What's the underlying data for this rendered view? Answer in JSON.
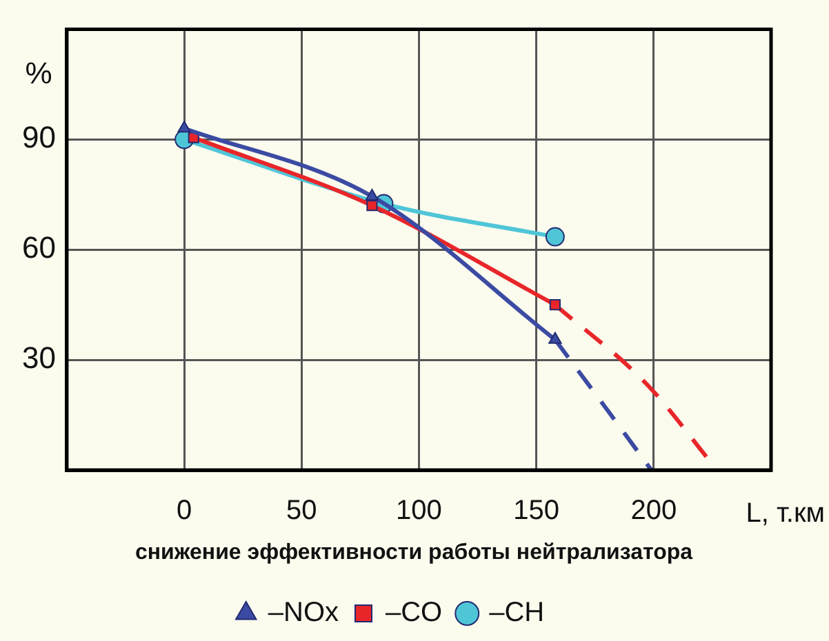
{
  "chart_data": {
    "type": "line",
    "ylabel": "%",
    "xlabel": "L, т.км",
    "annotations": [
      "снижение эффективности работы нейтрализатора"
    ],
    "xlim": [
      -50,
      250
    ],
    "xticks": [
      0,
      50,
      100,
      150,
      200
    ],
    "ylim": [
      0,
      120
    ],
    "yticks": [
      30,
      60,
      90
    ],
    "grid": true,
    "legend": "bottom",
    "series": [
      {
        "name": "–NOx",
        "color": "#3b4ba3",
        "marker": "triangle",
        "x": [
          0,
          80,
          158
        ],
        "values": [
          93,
          74.5,
          35.5
        ]
      },
      {
        "name": "–CO",
        "color": "#e8262a",
        "marker": "square",
        "x": [
          4,
          80,
          158
        ],
        "values": [
          90.5,
          72,
          45
        ]
      },
      {
        "name": "–CH",
        "color": "#4fc6d8",
        "marker": "circle",
        "x": [
          0,
          85,
          158
        ],
        "values": [
          90,
          72.5,
          63.5
        ]
      },
      {
        "color": "#3b4ba3",
        "marker": "none",
        "line_style": "dashed",
        "x": [
          158,
          181,
          199
        ],
        "values": [
          35.5,
          15.7,
          0
        ]
      },
      {
        "color": "#e8262a",
        "marker": "none",
        "line_style": "dashed",
        "x": [
          158,
          197,
          227
        ],
        "values": [
          45,
          23.4,
          0
        ]
      }
    ]
  }
}
